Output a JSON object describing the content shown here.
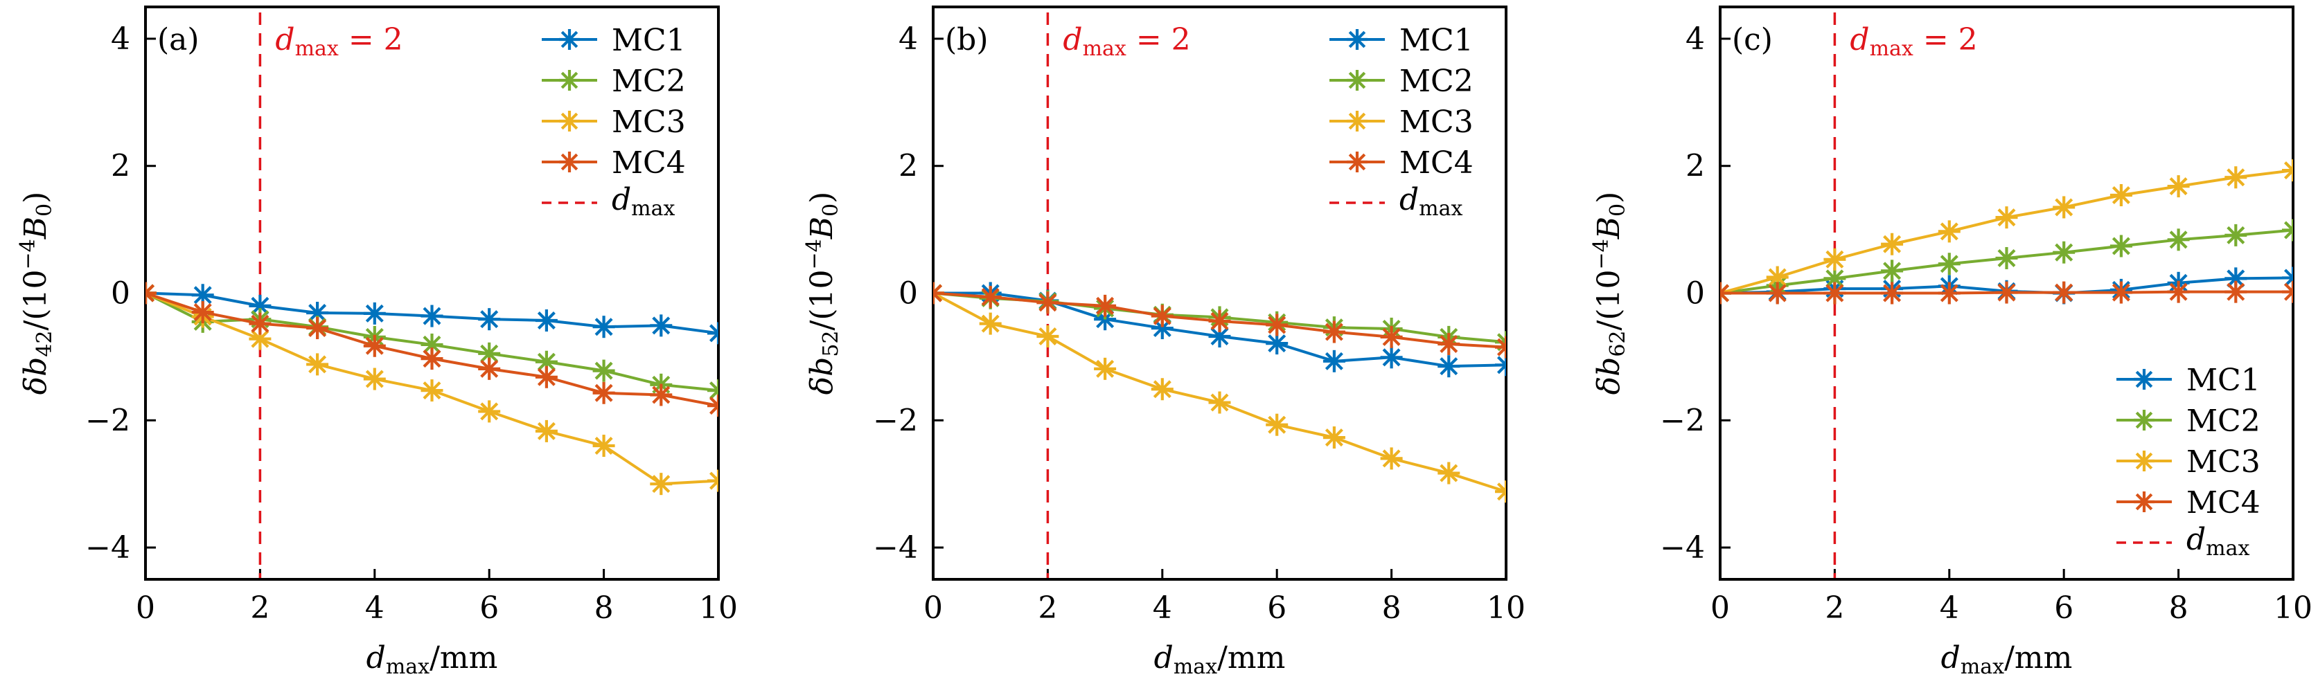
{
  "figure": {
    "x_tick_labels": [
      "0",
      "2",
      "4",
      "6",
      "8",
      "10"
    ],
    "y_tick_labels": [
      "−4",
      "−2",
      "0",
      "2",
      "4"
    ]
  },
  "chart_data": [
    {
      "type": "line",
      "panel_tag": "(a)",
      "title": "",
      "xlabel": {
        "main": "d",
        "sub": "max",
        "unit": "/mm"
      },
      "ylabel": {
        "prefix": "δb",
        "sub": "42",
        "mid": "/(10",
        "sup": "−4",
        "var": "B",
        "var_sub": "0",
        "end": ")"
      },
      "xlim": [
        0,
        10
      ],
      "ylim": [
        -4.5,
        4.5
      ],
      "xticks": [
        0,
        2,
        4,
        6,
        8,
        10
      ],
      "yticks": [
        -4,
        -2,
        0,
        2,
        4
      ],
      "grid": false,
      "legend_position": "top-right",
      "x": [
        0,
        1,
        2,
        3,
        4,
        5,
        6,
        7,
        8,
        9,
        10
      ],
      "series": [
        {
          "name": "MC1",
          "color": "#0072BD",
          "marker": "asterisk",
          "values": [
            0,
            -0.03,
            -0.2,
            -0.31,
            -0.32,
            -0.36,
            -0.41,
            -0.43,
            -0.53,
            -0.51,
            -0.63
          ]
        },
        {
          "name": "MC2",
          "color": "#77AC30",
          "marker": "asterisk",
          "values": [
            0,
            -0.45,
            -0.41,
            -0.53,
            -0.69,
            -0.81,
            -0.95,
            -1.08,
            -1.22,
            -1.44,
            -1.53
          ]
        },
        {
          "name": "MC3",
          "color": "#EDB120",
          "marker": "asterisk",
          "values": [
            0,
            -0.37,
            -0.72,
            -1.12,
            -1.35,
            -1.53,
            -1.86,
            -2.17,
            -2.4,
            -3.0,
            -2.95
          ]
        },
        {
          "name": "MC4",
          "color": "#D95319",
          "marker": "asterisk",
          "values": [
            0,
            -0.3,
            -0.48,
            -0.55,
            -0.83,
            -1.03,
            -1.19,
            -1.32,
            -1.57,
            -1.6,
            -1.77
          ]
        }
      ],
      "vline": {
        "name": "d_max",
        "x": 2,
        "color": "#E0151B",
        "style": "dashed"
      },
      "annotation": {
        "main": "d",
        "sub": "max",
        "rest": " = 2",
        "color": "#E0151B"
      },
      "legend_dline_label": {
        "main": "d",
        "sub": "max"
      }
    },
    {
      "type": "line",
      "panel_tag": "(b)",
      "title": "",
      "xlabel": {
        "main": "d",
        "sub": "max",
        "unit": "/mm"
      },
      "ylabel": {
        "prefix": "δb",
        "sub": "52",
        "mid": "/(10",
        "sup": "−4",
        "var": "B",
        "var_sub": "0",
        "end": ")"
      },
      "xlim": [
        0,
        10
      ],
      "ylim": [
        -4.5,
        4.5
      ],
      "xticks": [
        0,
        2,
        4,
        6,
        8,
        10
      ],
      "yticks": [
        -4,
        -2,
        0,
        2,
        4
      ],
      "grid": false,
      "legend_position": "top-right",
      "x": [
        0,
        1,
        2,
        3,
        4,
        5,
        6,
        7,
        8,
        9,
        10
      ],
      "series": [
        {
          "name": "MC1",
          "color": "#0072BD",
          "marker": "asterisk",
          "values": [
            0,
            0.0,
            -0.12,
            -0.41,
            -0.55,
            -0.68,
            -0.79,
            -1.07,
            -1.01,
            -1.15,
            -1.13
          ]
        },
        {
          "name": "MC2",
          "color": "#77AC30",
          "marker": "asterisk",
          "values": [
            0,
            -0.08,
            -0.13,
            -0.24,
            -0.34,
            -0.38,
            -0.46,
            -0.54,
            -0.56,
            -0.69,
            -0.77
          ]
        },
        {
          "name": "MC3",
          "color": "#EDB120",
          "marker": "asterisk",
          "values": [
            0,
            -0.48,
            -0.68,
            -1.19,
            -1.51,
            -1.72,
            -2.07,
            -2.27,
            -2.6,
            -2.83,
            -3.12
          ]
        },
        {
          "name": "MC4",
          "color": "#D95319",
          "marker": "asterisk",
          "values": [
            0,
            -0.06,
            -0.15,
            -0.2,
            -0.36,
            -0.44,
            -0.5,
            -0.61,
            -0.69,
            -0.8,
            -0.85
          ]
        }
      ],
      "vline": {
        "name": "d_max",
        "x": 2,
        "color": "#E0151B",
        "style": "dashed"
      },
      "annotation": {
        "main": "d",
        "sub": "max",
        "rest": " = 2",
        "color": "#E0151B"
      },
      "legend_dline_label": {
        "main": "d",
        "sub": "max"
      }
    },
    {
      "type": "line",
      "panel_tag": "(c)",
      "title": "",
      "xlabel": {
        "main": "d",
        "sub": "max",
        "unit": "/mm"
      },
      "ylabel": {
        "prefix": "δb",
        "sub": "62",
        "mid": "/(10",
        "sup": "−4",
        "var": "B",
        "var_sub": "0",
        "end": ")"
      },
      "xlim": [
        0,
        10
      ],
      "ylim": [
        -4.5,
        4.5
      ],
      "xticks": [
        0,
        2,
        4,
        6,
        8,
        10
      ],
      "yticks": [
        -4,
        -2,
        0,
        2,
        4
      ],
      "grid": false,
      "legend_position": "bottom-right",
      "x": [
        0,
        1,
        2,
        3,
        4,
        5,
        6,
        7,
        8,
        9,
        10
      ],
      "series": [
        {
          "name": "MC1",
          "color": "#0072BD",
          "marker": "asterisk",
          "values": [
            0,
            0.02,
            0.07,
            0.07,
            0.11,
            0.03,
            0.0,
            0.05,
            0.16,
            0.23,
            0.24
          ]
        },
        {
          "name": "MC2",
          "color": "#77AC30",
          "marker": "asterisk",
          "values": [
            0,
            0.12,
            0.23,
            0.35,
            0.46,
            0.55,
            0.64,
            0.74,
            0.84,
            0.91,
            0.99
          ]
        },
        {
          "name": "MC3",
          "color": "#EDB120",
          "marker": "asterisk",
          "values": [
            0,
            0.25,
            0.53,
            0.77,
            0.97,
            1.19,
            1.35,
            1.54,
            1.68,
            1.82,
            1.93
          ]
        },
        {
          "name": "MC4",
          "color": "#D95319",
          "marker": "asterisk",
          "values": [
            0,
            0.0,
            0.0,
            0.0,
            0.0,
            0.01,
            0.01,
            0.01,
            0.02,
            0.02,
            0.02
          ]
        }
      ],
      "vline": {
        "name": "d_max",
        "x": 2,
        "color": "#E0151B",
        "style": "dashed"
      },
      "annotation": {
        "main": "d",
        "sub": "max",
        "rest": " = 2",
        "color": "#E0151B"
      },
      "legend_dline_label": {
        "main": "d",
        "sub": "max"
      }
    }
  ]
}
